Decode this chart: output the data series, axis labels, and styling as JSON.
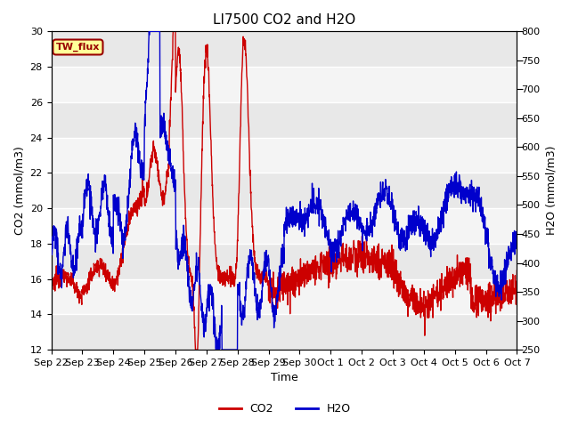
{
  "title": "LI7500 CO2 and H2O",
  "xlabel": "Time",
  "ylabel_left": "CO2 (mmol/m3)",
  "ylabel_right": "H2O (mmol/m3)",
  "ylim_left": [
    12,
    30
  ],
  "ylim_right": [
    250,
    800
  ],
  "yticks_left": [
    12,
    14,
    16,
    18,
    20,
    22,
    24,
    26,
    28,
    30
  ],
  "yticks_right": [
    250,
    300,
    350,
    400,
    450,
    500,
    550,
    600,
    650,
    700,
    750,
    800
  ],
  "xtick_labels": [
    "Sep 22",
    "Sep 23",
    "Sep 24",
    "Sep 25",
    "Sep 26",
    "Sep 27",
    "Sep 28",
    "Sep 29",
    "Sep 30",
    "Oct 1",
    "Oct 2",
    "Oct 3",
    "Oct 4",
    "Oct 5",
    "Oct 6",
    "Oct 7"
  ],
  "co2_color": "#CC0000",
  "h2o_color": "#0000CC",
  "legend_label_co2": "CO2",
  "legend_label_h2o": "H2O",
  "annotation_text": "TW_flux",
  "bg_color": "#ffffff",
  "plot_bg_color": "#ffffff",
  "band_color_dark": "#e8e8e8",
  "band_color_light": "#f4f4f4",
  "title_fontsize": 11,
  "axis_fontsize": 9,
  "tick_fontsize": 8,
  "line_width": 1.0
}
